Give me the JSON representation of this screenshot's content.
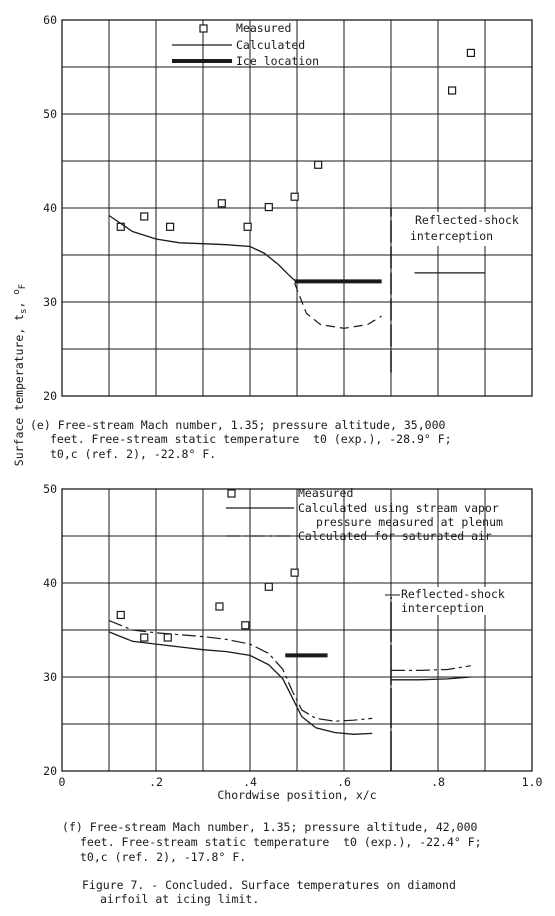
{
  "figure": {
    "ylabel": "Surface temperature, t",
    "ylabel_sub": "s",
    "ylabel_unit": ", ",
    "ylabel_unit_sup": "o",
    "ylabel_unit_sub": "F",
    "caption_line1": "Figure 7. - Concluded. Surface temperatures on diamond",
    "caption_line2": "airfoil at icing limit."
  },
  "chart_data": [
    {
      "panel": "e",
      "type": "line",
      "xlim": [
        0,
        1.0
      ],
      "ylim": [
        20,
        60
      ],
      "yticks": [
        "20",
        "30",
        "40",
        "50",
        "60"
      ],
      "grid": true,
      "legend_placement": "top-left",
      "legend": [
        "Measured",
        "Calculated",
        "Ice location"
      ],
      "annotation_line1": "Reflected-shock",
      "annotation_line2": "interception",
      "caption_line1": "(e) Free-stream Mach number, 1.35; pressure altitude, 35,000",
      "caption_line2": "feet. Free-stream static temperature  t0 (exp.), -28.9° F;",
      "caption_line3": "t0,c (ref. 2), -22.8° F.",
      "measured": {
        "x": [
          0.125,
          0.175,
          0.23,
          0.34,
          0.395,
          0.44,
          0.495,
          0.545,
          0.83,
          0.87
        ],
        "y": [
          38.0,
          39.1,
          38.0,
          40.5,
          38.0,
          40.1,
          41.2,
          44.6,
          52.5,
          56.5
        ]
      },
      "calculated": {
        "x": [
          0.1,
          0.15,
          0.2,
          0.25,
          0.3,
          0.35,
          0.4,
          0.43,
          0.46,
          0.48,
          0.495
        ],
        "y": [
          39.2,
          37.5,
          36.7,
          36.3,
          36.2,
          36.1,
          35.9,
          35.2,
          34.0,
          33.0,
          32.3
        ]
      },
      "calculated_dashed": {
        "x": [
          0.495,
          0.52,
          0.55,
          0.6,
          0.65,
          0.68
        ],
        "y": [
          32.0,
          28.8,
          27.6,
          27.2,
          27.6,
          28.5
        ]
      },
      "calculated_after_shock": {
        "x": [
          0.75,
          0.9
        ],
        "y": [
          33.1,
          33.1
        ]
      },
      "ice_location": {
        "x": [
          0.495,
          0.68
        ],
        "y": 32.2
      },
      "shock_line_x": 0.7,
      "shock_line_y": [
        22.5,
        40.0
      ]
    },
    {
      "panel": "f",
      "type": "line",
      "xlim": [
        0,
        1.0
      ],
      "ylim": [
        20,
        50
      ],
      "yticks": [
        "20",
        "30",
        "40",
        "50"
      ],
      "xticks": [
        "0",
        ".2",
        ".4",
        ".6",
        ".8",
        "1.0"
      ],
      "xlabel": "Chordwise position, x/c",
      "grid": true,
      "legend_placement": "top-right",
      "legend": [
        "Measured",
        "Calculated using stream vapor",
        "pressure measured at plenum",
        "Calculated for saturated air"
      ],
      "annotation_line1": "Reflected-shock",
      "annotation_line2": "interception",
      "caption_line1": "(f) Free-stream Mach number, 1.35; pressure altitude, 42,000",
      "caption_line2": "feet. Free-stream static temperature  t0 (exp.), -22.4° F;",
      "caption_line3": "t0,c (ref. 2), -17.8° F.",
      "measured": {
        "x": [
          0.125,
          0.175,
          0.225,
          0.335,
          0.39,
          0.44,
          0.495
        ],
        "y": [
          36.6,
          34.2,
          34.2,
          37.5,
          35.5,
          39.6,
          41.1
        ]
      },
      "calculated_plenum": {
        "x": [
          0.1,
          0.15,
          0.2,
          0.25,
          0.3,
          0.35,
          0.4,
          0.44,
          0.47,
          0.49,
          0.51,
          0.54,
          0.58,
          0.62,
          0.66
        ],
        "y": [
          34.8,
          33.8,
          33.5,
          33.2,
          32.9,
          32.7,
          32.3,
          31.3,
          29.8,
          27.8,
          25.8,
          24.6,
          24.1,
          23.9,
          24.0
        ]
      },
      "calculated_plenum_after_shock": {
        "x": [
          0.7,
          0.76,
          0.82,
          0.87
        ],
        "y": [
          29.7,
          29.7,
          29.8,
          30.0
        ]
      },
      "calculated_saturated": {
        "x": [
          0.1,
          0.15,
          0.2,
          0.25,
          0.3,
          0.35,
          0.4,
          0.44,
          0.47,
          0.49,
          0.51,
          0.54,
          0.58,
          0.62,
          0.66
        ],
        "y": [
          36.0,
          35.0,
          34.7,
          34.5,
          34.3,
          34.0,
          33.5,
          32.5,
          30.8,
          28.5,
          26.5,
          25.6,
          25.3,
          25.4,
          25.6
        ]
      },
      "calculated_saturated_after_shock": {
        "x": [
          0.7,
          0.76,
          0.82,
          0.87
        ],
        "y": [
          30.7,
          30.7,
          30.8,
          31.2
        ]
      },
      "ice_location": {
        "x": [
          0.475,
          0.565
        ],
        "y": 32.3
      },
      "shock_line_x": 0.7,
      "shock_line_y": [
        20,
        38.5
      ]
    }
  ]
}
